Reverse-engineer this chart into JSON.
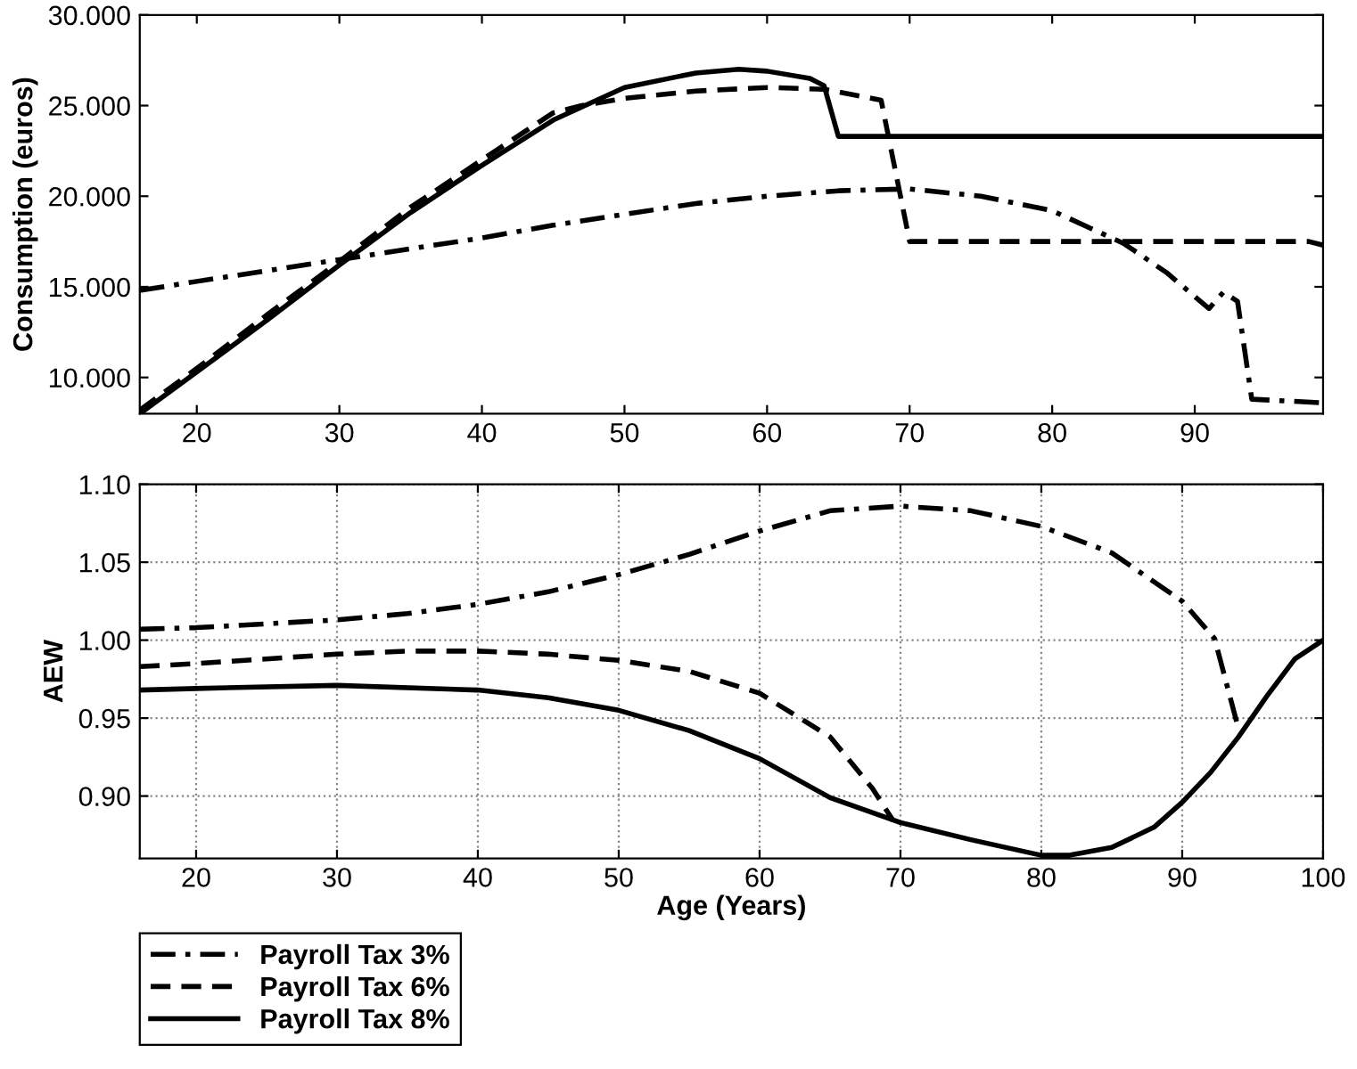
{
  "chart_data": [
    {
      "type": "line",
      "ylabel": "Consumption (euros)",
      "xlim": [
        16,
        99
      ],
      "ylim": [
        8,
        30
      ],
      "xticks": [
        20,
        30,
        40,
        50,
        60,
        70,
        80,
        90
      ],
      "yticks": [
        {
          "value": 10,
          "label": "10.000"
        },
        {
          "value": 15,
          "label": "15.000"
        },
        {
          "value": 20,
          "label": "20.000"
        },
        {
          "value": 25,
          "label": "25.000"
        },
        {
          "value": 30,
          "label": "30.000"
        }
      ],
      "grid": false,
      "series": [
        {
          "color": "#000000",
          "line_style": "dashdot",
          "x": [
            16,
            20,
            25,
            30,
            35,
            40,
            45,
            50,
            55,
            60,
            65,
            70,
            75,
            80,
            85,
            88,
            91,
            92,
            93,
            94,
            99
          ],
          "values": [
            14.8,
            15.3,
            15.9,
            16.5,
            17.1,
            17.7,
            18.4,
            19.0,
            19.6,
            20.0,
            20.3,
            20.4,
            20.0,
            19.2,
            17.4,
            15.8,
            13.8,
            14.7,
            14.2,
            8.8,
            8.6
          ]
        },
        {
          "color": "#000000",
          "line_style": "dashed",
          "x": [
            16,
            20,
            25,
            30,
            35,
            40,
            45,
            47,
            50,
            55,
            60,
            64,
            68,
            70,
            98,
            99
          ],
          "values": [
            8.2,
            10.5,
            13.5,
            16.4,
            19.4,
            22.0,
            24.6,
            25.0,
            25.4,
            25.8,
            26.0,
            25.9,
            25.3,
            17.5,
            17.5,
            17.3
          ]
        },
        {
          "color": "#000000",
          "line_style": "solid",
          "x": [
            16,
            20,
            25,
            30,
            35,
            40,
            45,
            50,
            55,
            58,
            60,
            63,
            64,
            65,
            99
          ],
          "values": [
            8.0,
            10.3,
            13.2,
            16.2,
            19.1,
            21.7,
            24.2,
            26.0,
            26.8,
            27.0,
            26.9,
            26.5,
            26.1,
            23.3,
            23.3
          ]
        }
      ]
    },
    {
      "type": "line",
      "xlabel": "Age (Years)",
      "ylabel": "AEW",
      "xlim": [
        16,
        100
      ],
      "ylim": [
        0.86,
        1.1
      ],
      "xticks": [
        20,
        30,
        40,
        50,
        60,
        70,
        80,
        90,
        100
      ],
      "yticks": [
        {
          "value": 0.9,
          "label": "0.90"
        },
        {
          "value": 0.95,
          "label": "0.95"
        },
        {
          "value": 1.0,
          "label": "1.00"
        },
        {
          "value": 1.05,
          "label": "1.05"
        },
        {
          "value": 1.1,
          "label": "1.10"
        }
      ],
      "grid": true,
      "legend": "bottom left",
      "series": [
        {
          "name": "Payroll Tax 3%",
          "color": "#000000",
          "line_style": "dashdot",
          "x": [
            16,
            20,
            30,
            35,
            40,
            45,
            50,
            55,
            60,
            65,
            70,
            75,
            80,
            85,
            90,
            92.3,
            94
          ],
          "values": [
            1.007,
            1.008,
            1.013,
            1.017,
            1.023,
            1.031,
            1.042,
            1.055,
            1.07,
            1.083,
            1.086,
            1.083,
            1.073,
            1.056,
            1.025,
            1.001,
            0.943
          ]
        },
        {
          "name": "Payroll Tax 6%",
          "color": "#000000",
          "line_style": "dashed",
          "x": [
            16,
            20,
            30,
            35,
            40,
            45,
            50,
            55,
            60,
            65,
            68,
            69.5
          ],
          "values": [
            0.983,
            0.985,
            0.991,
            0.993,
            0.993,
            0.991,
            0.987,
            0.98,
            0.966,
            0.938,
            0.905,
            0.884
          ]
        },
        {
          "name": "Payroll Tax 8%",
          "color": "#000000",
          "line_style": "solid",
          "x": [
            16,
            20,
            30,
            40,
            45,
            50,
            55,
            60,
            65,
            70,
            75,
            80,
            82,
            85,
            88,
            90,
            92,
            94,
            96,
            98,
            100
          ],
          "values": [
            0.968,
            0.969,
            0.971,
            0.968,
            0.963,
            0.955,
            0.942,
            0.924,
            0.899,
            0.883,
            0.872,
            0.862,
            0.862,
            0.867,
            0.88,
            0.896,
            0.915,
            0.938,
            0.964,
            0.988,
            1.0
          ]
        }
      ]
    }
  ]
}
